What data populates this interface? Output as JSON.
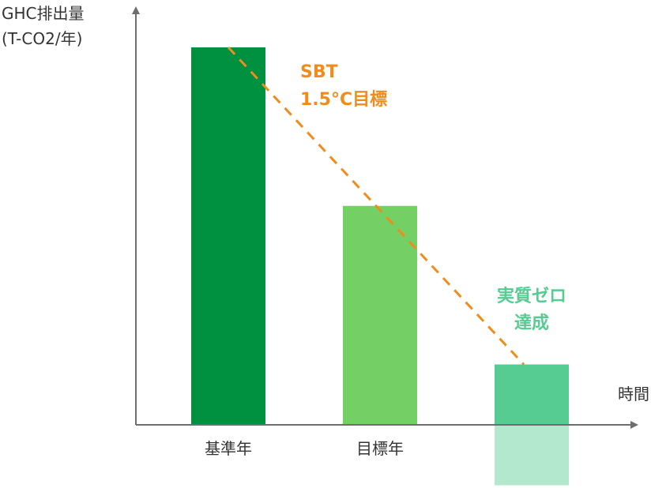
{
  "chart_data": {
    "type": "bar",
    "ylabel_line1": "GHC排出量",
    "ylabel_line2": "(T-CO2/年)",
    "xlabel": "時間",
    "categories": [
      "基準年",
      "目標年",
      ""
    ],
    "values": [
      100,
      58,
      16
    ],
    "net_zero_offset": -16,
    "ylim": [
      -17,
      100
    ],
    "bar_colors": [
      "#009140",
      "#74d064",
      "#56cb92"
    ],
    "offset_color": "#b3e8cf",
    "target_line": {
      "label_line1": "SBT",
      "label_line2": "1.5°C目標",
      "color": "#f08c1e",
      "start_value": 100,
      "end_value": 16
    },
    "net_zero": {
      "label_line1": "実質ゼロ",
      "label_line2": "達成",
      "color": "#56cb92"
    },
    "axis_color": "#6e6e6e",
    "text_color": "#333333"
  }
}
